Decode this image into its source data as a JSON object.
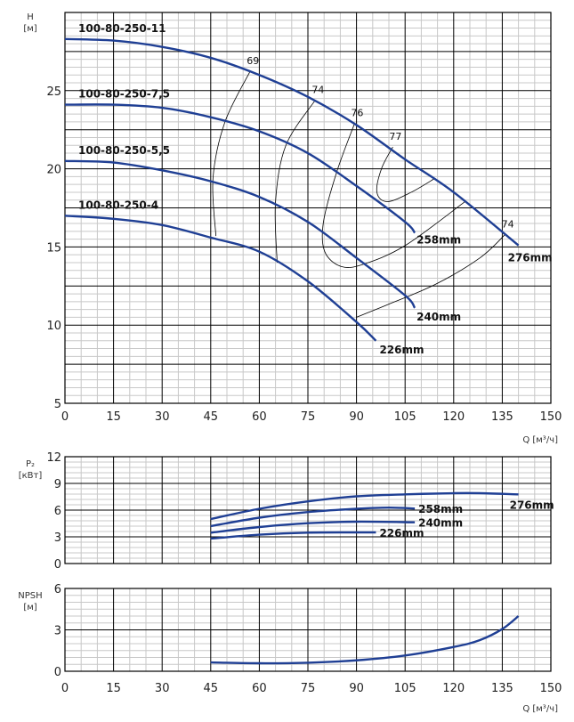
{
  "colors": {
    "curve": "#1f3f94",
    "grid_major": "#000000",
    "grid_minor": "#c8c8c8",
    "efficiency": "#000000"
  },
  "chart_data": [
    {
      "id": "head",
      "type": "line",
      "ylabel": "H",
      "yunit": "[м]",
      "xlabel": "Q [м³/ч]",
      "xlim": [
        0,
        150
      ],
      "ylim": [
        5,
        30
      ],
      "xticks": [
        0,
        15,
        30,
        45,
        60,
        75,
        90,
        105,
        120,
        135,
        150
      ],
      "yticks": [
        5,
        10,
        15,
        20,
        25
      ],
      "grid": true,
      "series": [
        {
          "model": "100-80-250-11",
          "diameter": "276mm",
          "x": [
            0,
            15,
            30,
            45,
            60,
            75,
            90,
            105,
            120,
            140
          ],
          "y": [
            28.3,
            28.2,
            27.8,
            27.1,
            26.0,
            24.6,
            22.8,
            20.6,
            18.5,
            15.1
          ]
        },
        {
          "model": "100-80-250-7,5",
          "diameter": "258mm",
          "x": [
            0,
            15,
            30,
            45,
            60,
            75,
            90,
            105,
            108
          ],
          "y": [
            24.1,
            24.1,
            23.9,
            23.3,
            22.4,
            21.0,
            18.9,
            16.6,
            15.9
          ]
        },
        {
          "model": "100-80-250-5,5",
          "diameter": "240mm",
          "x": [
            0,
            15,
            30,
            45,
            60,
            75,
            90,
            105,
            108
          ],
          "y": [
            20.5,
            20.4,
            19.9,
            19.2,
            18.2,
            16.6,
            14.3,
            11.9,
            11.1
          ]
        },
        {
          "model": "100-80-250-4",
          "diameter": "226mm",
          "x": [
            0,
            15,
            30,
            45,
            60,
            75,
            90,
            96
          ],
          "y": [
            17.0,
            16.8,
            16.4,
            15.6,
            14.7,
            12.8,
            10.2,
            9.0
          ]
        }
      ],
      "efficiency_curves": [
        {
          "label": "69",
          "x": [
            57.2,
            49.4,
            45.7,
            46.6
          ],
          "y": [
            26.25,
            23.0,
            19.4,
            15.7
          ]
        },
        {
          "label": "74",
          "x": [
            77.3,
            68.2,
            65.0,
            65.5
          ],
          "y": [
            24.4,
            21.5,
            17.9,
            14.0
          ]
        },
        {
          "label": "76",
          "x": [
            89.4,
            83.9,
            79.8,
            80.2,
            85.3,
            92.2,
            105.1,
            123.5
          ],
          "y": [
            22.9,
            19.8,
            16.6,
            14.7,
            13.75,
            13.9,
            15.1,
            17.9
          ]
        },
        {
          "label": "77",
          "x": [
            101.2,
            97.7,
            96.3,
            99.5,
            106.9,
            114.3
          ],
          "y": [
            21.4,
            20.0,
            18.5,
            17.9,
            18.5,
            19.4
          ]
        },
        {
          "label": "74",
          "x": [
            135.9,
            128.1,
            114.3,
            99.5,
            89.9
          ],
          "y": [
            15.8,
            14.3,
            12.6,
            11.3,
            10.5
          ]
        }
      ]
    },
    {
      "id": "power",
      "type": "line",
      "ylabel": "P₂",
      "yunit": "[кВт]",
      "xlim": [
        0,
        150
      ],
      "ylim": [
        0,
        12
      ],
      "yticks": [
        0,
        3,
        6,
        9,
        12
      ],
      "grid": true,
      "series": [
        {
          "diameter": "276mm",
          "x": [
            45,
            60,
            75,
            90,
            105,
            120,
            128,
            140
          ],
          "y": [
            5.0,
            6.15,
            6.98,
            7.55,
            7.77,
            7.9,
            7.9,
            7.77
          ]
        },
        {
          "diameter": "258mm",
          "x": [
            45,
            60,
            75,
            90,
            100,
            108
          ],
          "y": [
            4.2,
            5.15,
            5.78,
            6.15,
            6.28,
            6.18
          ]
        },
        {
          "diameter": "240mm",
          "x": [
            45,
            60,
            75,
            90,
            108
          ],
          "y": [
            3.47,
            4.1,
            4.53,
            4.7,
            4.63
          ]
        },
        {
          "diameter": "226mm",
          "x": [
            45,
            60,
            75,
            90,
            96
          ],
          "y": [
            2.8,
            3.24,
            3.47,
            3.5,
            3.5
          ]
        }
      ]
    },
    {
      "id": "npsh",
      "type": "line",
      "ylabel": "NPSH",
      "yunit": "[м]",
      "xlabel": "Q [м³/ч]",
      "xlim": [
        0,
        150
      ],
      "ylim": [
        0,
        6
      ],
      "xticks": [
        0,
        15,
        30,
        45,
        60,
        75,
        90,
        105,
        120,
        135,
        150
      ],
      "yticks": [
        0,
        3,
        6
      ],
      "grid": true,
      "series": [
        {
          "x": [
            45,
            60,
            75,
            90,
            105,
            120,
            128,
            135,
            140
          ],
          "y": [
            0.64,
            0.58,
            0.62,
            0.79,
            1.14,
            1.76,
            2.25,
            3.06,
            4.0
          ]
        }
      ]
    }
  ]
}
